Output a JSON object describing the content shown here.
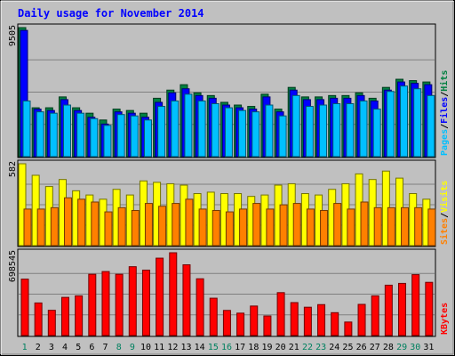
{
  "chart_data": {
    "type": "bar",
    "title": "Daily usage for November 2014",
    "categories": [
      "1",
      "2",
      "3",
      "4",
      "5",
      "6",
      "7",
      "8",
      "9",
      "10",
      "11",
      "12",
      "13",
      "14",
      "15",
      "16",
      "17",
      "18",
      "19",
      "20",
      "21",
      "22",
      "23",
      "24",
      "25",
      "26",
      "27",
      "28",
      "29",
      "30",
      "31"
    ],
    "weekend_days": [
      "1",
      "8",
      "9",
      "15",
      "16",
      "22",
      "23",
      "29",
      "30"
    ],
    "panels": [
      {
        "id": "hits-files-pages",
        "max_label": "9505",
        "ylim": [
          0,
          9505
        ],
        "legend": [
          {
            "text": "Pages",
            "color": "#00c0ff"
          },
          {
            "text": "/",
            "color": "#000000"
          },
          {
            "text": "Files",
            "color": "#0000ff"
          },
          {
            "text": "/",
            "color": "#000000"
          },
          {
            "text": "Hits",
            "color": "#008040"
          }
        ],
        "series": [
          {
            "name": "Hits",
            "color": "#008040",
            "values": [
              9505,
              3600,
              3600,
              4400,
              3600,
              3200,
              2700,
              3500,
              3400,
              3200,
              4300,
              4900,
              5300,
              4700,
              4500,
              4000,
              3800,
              3700,
              4600,
              3500,
              5100,
              4400,
              4400,
              4500,
              4500,
              4700,
              4300,
              5100,
              5700,
              5600,
              5500
            ]
          },
          {
            "name": "Files",
            "color": "#0000ff",
            "values": [
              9300,
              3500,
              3400,
              4200,
              3400,
              2900,
              2400,
              3300,
              3200,
              2900,
              4000,
              4700,
              5000,
              4500,
              4300,
              3800,
              3600,
              3500,
              4400,
              3300,
              4900,
              4200,
              4200,
              4300,
              4300,
              4500,
              4100,
              4900,
              5500,
              5400,
              5300
            ]
          },
          {
            "name": "Pages",
            "color": "#00c0ff",
            "values": [
              4100,
              3300,
              3200,
              3800,
              3200,
              2800,
              2300,
              3100,
              3000,
              2700,
              3700,
              4100,
              4600,
              4100,
              3900,
              3600,
              3400,
              3300,
              3800,
              3000,
              4500,
              3700,
              3800,
              3900,
              3900,
              4100,
              3500,
              4800,
              5200,
              5000,
              4500
            ]
          }
        ]
      },
      {
        "id": "visits-sites",
        "max_label": "582",
        "ylim": [
          0,
          582
        ],
        "legend": [
          {
            "text": "Sites",
            "color": "#ff8000"
          },
          {
            "text": "/",
            "color": "#000000"
          },
          {
            "text": "Visits",
            "color": "#ffff00"
          }
        ],
        "series": [
          {
            "name": "Visits",
            "color": "#ffff00",
            "values": [
              582,
              500,
              420,
              470,
              390,
              360,
              330,
              400,
              360,
              460,
              450,
              440,
              430,
              370,
              380,
              370,
              370,
              350,
              360,
              430,
              440,
              370,
              360,
              400,
              440,
              510,
              470,
              530,
              480,
              370,
              330
            ]
          },
          {
            "name": "Sites",
            "color": "#ff8000",
            "values": [
              260,
              260,
              270,
              340,
              330,
              310,
              240,
              270,
              250,
              300,
              280,
              300,
              330,
              260,
              250,
              240,
              260,
              300,
              260,
              290,
              300,
              260,
              250,
              300,
              260,
              310,
              270,
              270,
              270,
              270,
              260
            ]
          }
        ]
      },
      {
        "id": "kbytes",
        "max_label": "698545",
        "ylim": [
          0,
          698545
        ],
        "legend": [
          {
            "text": "KBytes",
            "color": "#ff0000"
          }
        ],
        "series": [
          {
            "name": "KBytes",
            "color": "#ff0000",
            "values": [
              476000,
              275000,
              213000,
              322000,
              335000,
              517000,
              540000,
              517000,
              581000,
              552000,
              653000,
              698545,
              597000,
              479000,
              315000,
              212000,
              189000,
              249000,
              165000,
              362000,
              278000,
              239000,
              261000,
              193000,
              114000,
              263000,
              335000,
              425000,
              440000,
              514000,
              449000
            ]
          }
        ]
      }
    ]
  }
}
